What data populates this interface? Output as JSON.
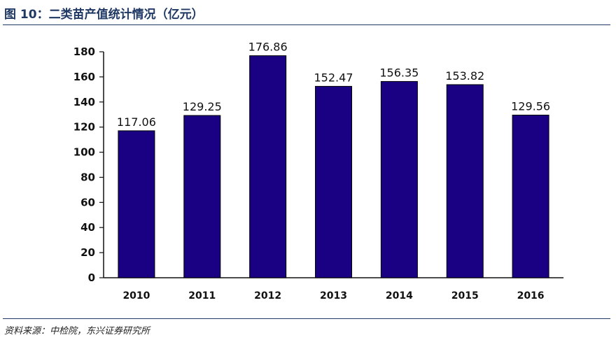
{
  "figure": {
    "title": "图 10：二类苗产值统计情况（亿元）",
    "source": "资料来源：中检院，东兴证券研究所"
  },
  "colors": {
    "bar": "#1a0082",
    "heading": "#1f3864",
    "axis": "#111111"
  },
  "chart_data": {
    "type": "bar",
    "categories": [
      "2010",
      "2011",
      "2012",
      "2013",
      "2014",
      "2015",
      "2016"
    ],
    "values": [
      117.06,
      129.25,
      176.86,
      152.47,
      156.35,
      153.82,
      129.56
    ],
    "data_labels": [
      "117.06",
      "129.25",
      "176.86",
      "152.47",
      "156.35",
      "153.82",
      "129.56"
    ],
    "title": "二类苗产值统计情况（亿元）",
    "xlabel": "",
    "ylabel": "",
    "ylim": [
      0,
      180
    ],
    "yticks": [
      0,
      20,
      40,
      60,
      80,
      100,
      120,
      140,
      160,
      180
    ],
    "grid": false,
    "legend": "none"
  }
}
